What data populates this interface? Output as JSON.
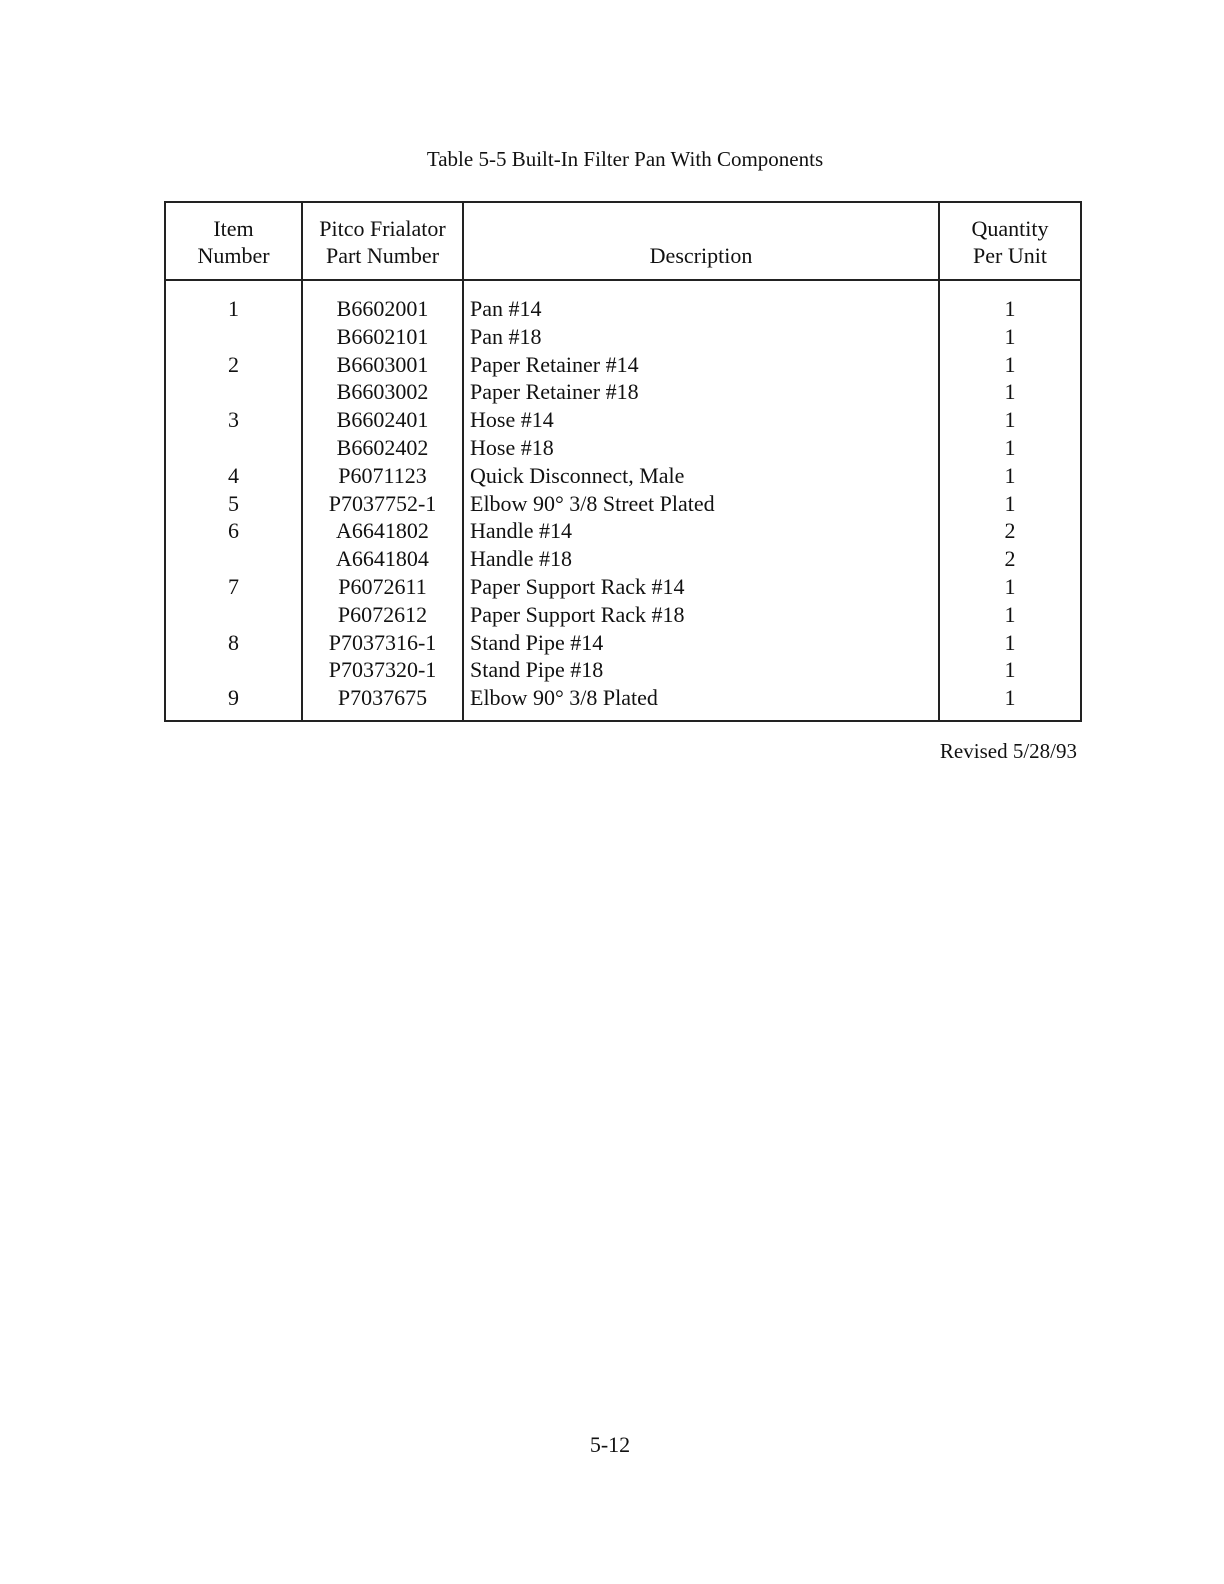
{
  "title": "Table 5-5  Built-In Filter Pan With Components",
  "table": {
    "headers": [
      {
        "line1": "Item",
        "line2": "Number"
      },
      {
        "line1": "Pitco Frialator",
        "line2": "Part Number"
      },
      {
        "line1": "",
        "line2": "Description"
      },
      {
        "line1": "Quantity",
        "line2": "Per Unit"
      }
    ],
    "rows": [
      {
        "item": "1",
        "part": "B6602001",
        "desc": "Pan #14",
        "qty": "1"
      },
      {
        "item": "",
        "part": "B6602101",
        "desc": "Pan #18",
        "qty": "1"
      },
      {
        "item": "2",
        "part": "B6603001",
        "desc": "Paper Retainer #14",
        "qty": "1"
      },
      {
        "item": "",
        "part": "B6603002",
        "desc": "Paper Retainer #18",
        "qty": "1"
      },
      {
        "item": "3",
        "part": "B6602401",
        "desc": "Hose #14",
        "qty": "1"
      },
      {
        "item": "",
        "part": "B6602402",
        "desc": "Hose #18",
        "qty": "1"
      },
      {
        "item": "4",
        "part": "P6071123",
        "desc": "Quick Disconnect, Male",
        "qty": "1"
      },
      {
        "item": "5",
        "part": "P7037752-1",
        "desc": "Elbow 90° 3/8 Street Plated",
        "qty": "1"
      },
      {
        "item": "6",
        "part": "A6641802",
        "desc": "Handle #14",
        "qty": "2"
      },
      {
        "item": "",
        "part": "A6641804",
        "desc": "Handle #18",
        "qty": "2"
      },
      {
        "item": "7",
        "part": "P6072611",
        "desc": "Paper Support Rack #14",
        "qty": "1"
      },
      {
        "item": "",
        "part": "P6072612",
        "desc": "Paper Support Rack #18",
        "qty": "1"
      },
      {
        "item": "8",
        "part": "P7037316-1",
        "desc": "Stand Pipe #14",
        "qty": "1"
      },
      {
        "item": "",
        "part": "P7037320-1",
        "desc": "Stand Pipe #18",
        "qty": "1"
      },
      {
        "item": "9",
        "part": "P7037675",
        "desc": "Elbow 90° 3/8 Plated",
        "qty": "1"
      }
    ]
  },
  "revised": "Revised 5/28/93",
  "page_number": "5-12"
}
